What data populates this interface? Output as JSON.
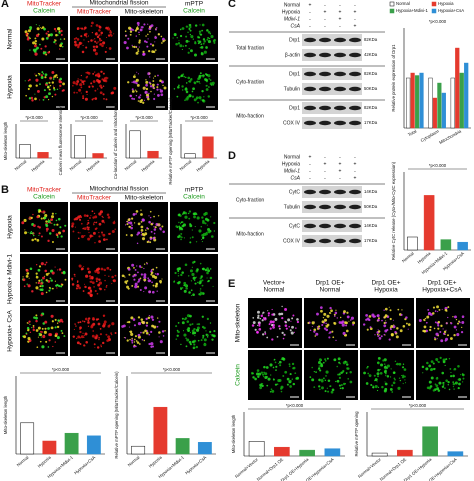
{
  "A": {
    "label": "A",
    "merge_header": [
      "MitoTracker",
      "Calcein"
    ],
    "group_header": "Mitochondrial fission",
    "col_headers": [
      "MitoTracker",
      "Mito-skeleton"
    ],
    "last_header": [
      "mPTP",
      "Calcein"
    ],
    "rows": [
      "Normal",
      "Hypoxia"
    ],
    "charts": [
      {
        "ylabel": "Mito-skeleton length",
        "categories": [
          "Normal",
          "Hypoxia"
        ],
        "values": [
          6,
          2.5
        ],
        "colors": [
          "#ffffff",
          "#e53a2e"
        ],
        "ylim": [
          0,
          15
        ],
        "annotation": "*p<0.000"
      },
      {
        "ylabel": "Calcein mean fluorescence intensity",
        "categories": [
          "Normal",
          "Hypoxia"
        ],
        "values": [
          100,
          20
        ],
        "colors": [
          "#ffffff",
          "#e53a2e"
        ],
        "ylim": [
          0,
          150
        ],
        "annotation": "*p<0.000"
      },
      {
        "ylabel": "Co-location of Calcein and mitochondria",
        "categories": [
          "Normal",
          "Hypoxia"
        ],
        "values": [
          0.8,
          0.2
        ],
        "colors": [
          "#ffffff",
          "#e53a2e"
        ],
        "ylim": [
          0,
          1
        ],
        "annotation": "*p<0.000"
      },
      {
        "ylabel": "Relative mPTP opening (MitoTracker/Calcein)",
        "categories": [
          "Normal",
          "Hypoxia"
        ],
        "values": [
          1,
          5
        ],
        "colors": [
          "#ffffff",
          "#e53a2e"
        ],
        "ylim": [
          0,
          8
        ],
        "annotation": "*p<0.000"
      }
    ]
  },
  "B": {
    "label": "B",
    "merge_header": [
      "MitoTracker",
      "Calcein"
    ],
    "group_header": "Mitochondrial fission",
    "col_headers": [
      "MitoTracker",
      "Mito-skeleton"
    ],
    "last_header": [
      "mPTP",
      "Calcein"
    ],
    "rows": [
      "Hypoxia",
      "Hypoxia+ Mdivi-1",
      "Hypoxia+ CsA"
    ],
    "charts": [
      {
        "ylabel": "Mito-skeleton length",
        "categories": [
          "Normal",
          "Hypoxia",
          "Hypoxia+Mdivi-1",
          "Hypoxia+CsA"
        ],
        "values": [
          6,
          2.5,
          4,
          3.5
        ],
        "colors": [
          "#ffffff",
          "#e53a2e",
          "#3aa04a",
          "#2f8fd6"
        ],
        "ylim": [
          0,
          15
        ],
        "annotation": "*p<0.000"
      },
      {
        "ylabel": "Relative mPTP opening (MitoTracker/Calcein)",
        "categories": [
          "Normal",
          "Hypoxia",
          "Hypoxia+Mdivi-1",
          "Hypoxia+CsA"
        ],
        "values": [
          1,
          6,
          2,
          1.5
        ],
        "colors": [
          "#ffffff",
          "#e53a2e",
          "#3aa04a",
          "#2f8fd6"
        ],
        "ylim": [
          0,
          10
        ],
        "annotation": "*p<0.000"
      }
    ]
  },
  "C": {
    "label": "C",
    "treatments": [
      {
        "name": "Normal",
        "marks": [
          "+",
          "-",
          "-",
          "-"
        ]
      },
      {
        "name": "Hypoxia",
        "marks": [
          "-",
          "+",
          "+",
          "+"
        ]
      },
      {
        "name": "Mdivi-1",
        "marks": [
          "-",
          "-",
          "+",
          "-"
        ]
      },
      {
        "name": "CsA",
        "marks": [
          "-",
          "-",
          "-",
          "+"
        ]
      }
    ],
    "fractions": [
      {
        "name": "Total fraction",
        "bands": [
          {
            "protein": "Drp1",
            "size": "82KDa"
          },
          {
            "protein": "β-actin",
            "size": "42KDa"
          }
        ]
      },
      {
        "name": "Cyto-fraction",
        "bands": [
          {
            "protein": "Drp1",
            "size": "82KDa"
          },
          {
            "protein": "Tubulin",
            "size": "50KDa"
          }
        ]
      },
      {
        "name": "Mito-fraction",
        "bands": [
          {
            "protein": "Drp1",
            "size": "82KDa"
          },
          {
            "protein": "COX IV",
            "size": "17KDa"
          }
        ]
      }
    ],
    "chart": {
      "ylabel": "Relative protein expression of Drp1",
      "categories": [
        "Total",
        "Cytoplasm",
        "Mitochondria"
      ],
      "ylim": [
        0,
        2
      ],
      "annotation": "*p<0.000",
      "series": [
        {
          "name": "Normal",
          "color": "#ffffff",
          "values": [
            1,
            1,
            1
          ]
        },
        {
          "name": "Hypoxia",
          "color": "#e53a2e",
          "values": [
            1.1,
            0.6,
            1.6
          ]
        },
        {
          "name": "Hypoxia+Mdivi-1",
          "color": "#3aa04a",
          "values": [
            1.05,
            0.9,
            1.1
          ]
        },
        {
          "name": "Hypoxia+CsA",
          "color": "#2f8fd6",
          "values": [
            1.1,
            0.7,
            1.3
          ]
        }
      ]
    }
  },
  "D": {
    "label": "D",
    "treatments": [
      {
        "name": "Normal",
        "marks": [
          "+",
          "-",
          "-",
          "-"
        ]
      },
      {
        "name": "Hypoxia",
        "marks": [
          "-",
          "+",
          "+",
          "+"
        ]
      },
      {
        "name": "Mdivi-1",
        "marks": [
          "-",
          "-",
          "+",
          "-"
        ]
      },
      {
        "name": "CsA",
        "marks": [
          "-",
          "-",
          "-",
          "+"
        ]
      }
    ],
    "fractions": [
      {
        "name": "Cyto-fraction",
        "bands": [
          {
            "protein": "CytC",
            "size": "14KDa"
          },
          {
            "protein": "Tubulin",
            "size": "50KDa"
          }
        ]
      },
      {
        "name": "Mito-fraction",
        "bands": [
          {
            "protein": "CytC",
            "size": "14KDa"
          },
          {
            "protein": "COX IV",
            "size": "17KDa"
          }
        ]
      }
    ],
    "chart": {
      "ylabel": "Relative CytC release (Cyto-/Mito-CytC expression)",
      "categories": [
        "Normal",
        "Hypoxia",
        "Hypoxia+Mdivi-1",
        "Hypoxia+CsA"
      ],
      "values": [
        1,
        4.2,
        0.8,
        0.6
      ],
      "colors": [
        "#ffffff",
        "#e53a2e",
        "#3aa04a",
        "#2f8fd6"
      ],
      "ylim": [
        0,
        6
      ],
      "annotation": "*p<0.000"
    }
  },
  "E": {
    "label": "E",
    "col_headers": [
      [
        "Vector+",
        "Normal"
      ],
      [
        "Drp1 OE+",
        "Normal"
      ],
      [
        "Drp1 OE+",
        "Hypoxia"
      ],
      [
        "Drp1 OE+",
        "Hypoxia+CsA"
      ]
    ],
    "rows": [
      "Mito-skeleton",
      "Calcein"
    ],
    "charts": [
      {
        "ylabel": "Mito-skeleton length",
        "categories": [
          "Normal+Vector",
          "Normal+Drp1 OE",
          "Drp1 OE+Hypoxia",
          "Drp1 OE+Hypoxia+CsA"
        ],
        "values": [
          5,
          3,
          2,
          2.5
        ],
        "colors": [
          "#ffffff",
          "#e53a2e",
          "#3aa04a",
          "#2f8fd6"
        ],
        "ylim": [
          0,
          15
        ],
        "annotation": "*p<0.000"
      },
      {
        "ylabel": "Relative mPTP opening",
        "categories": [
          "Normal+Vector",
          "Normal+Drp1 OE",
          "Drp1 OE+Hypoxia",
          "Drp1 OE+Hypoxia+CsA"
        ],
        "values": [
          1,
          2,
          10,
          1.5
        ],
        "colors": [
          "#ffffff",
          "#e53a2e",
          "#3aa04a",
          "#2f8fd6"
        ],
        "ylim": [
          0,
          15
        ],
        "annotation": "*p<0.000"
      }
    ]
  }
}
